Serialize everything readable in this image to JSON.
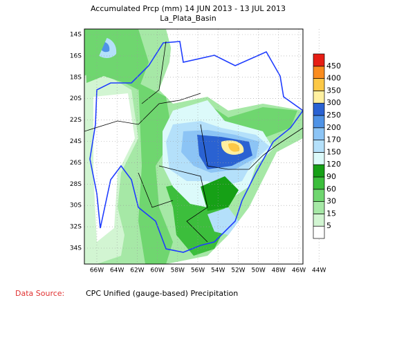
{
  "header": {
    "title": "Accumulated Prcp (mm) 14 JUN 2013 - 13 JUL 2013",
    "subtitle": "La_Plata_Basin"
  },
  "map": {
    "lat_labels": [
      "14S",
      "16S",
      "18S",
      "20S",
      "22S",
      "24S",
      "26S",
      "28S",
      "30S",
      "32S",
      "34S"
    ],
    "lon_labels": [
      "66W",
      "64W",
      "62W",
      "60W",
      "58W",
      "56W",
      "54W",
      "52W",
      "50W",
      "48W",
      "46W",
      "44W"
    ]
  },
  "colorbar": {
    "levels": [
      5,
      15,
      30,
      60,
      90,
      120,
      150,
      170,
      200,
      250,
      300,
      350,
      400,
      450
    ],
    "colors": [
      "#ffffff",
      "#d2f5d2",
      "#a6e8a6",
      "#6fd66f",
      "#3cbe3c",
      "#16a016",
      "#dcfafa",
      "#b4e0fa",
      "#8cc4f5",
      "#4f93e6",
      "#2a62d2",
      "#fff0a0",
      "#fcc846",
      "#fa8c1e",
      "#e61e14"
    ]
  },
  "footer": {
    "source_label": "Data Source:",
    "source_text": "CPC Unified (gauge-based) Precipitation"
  }
}
